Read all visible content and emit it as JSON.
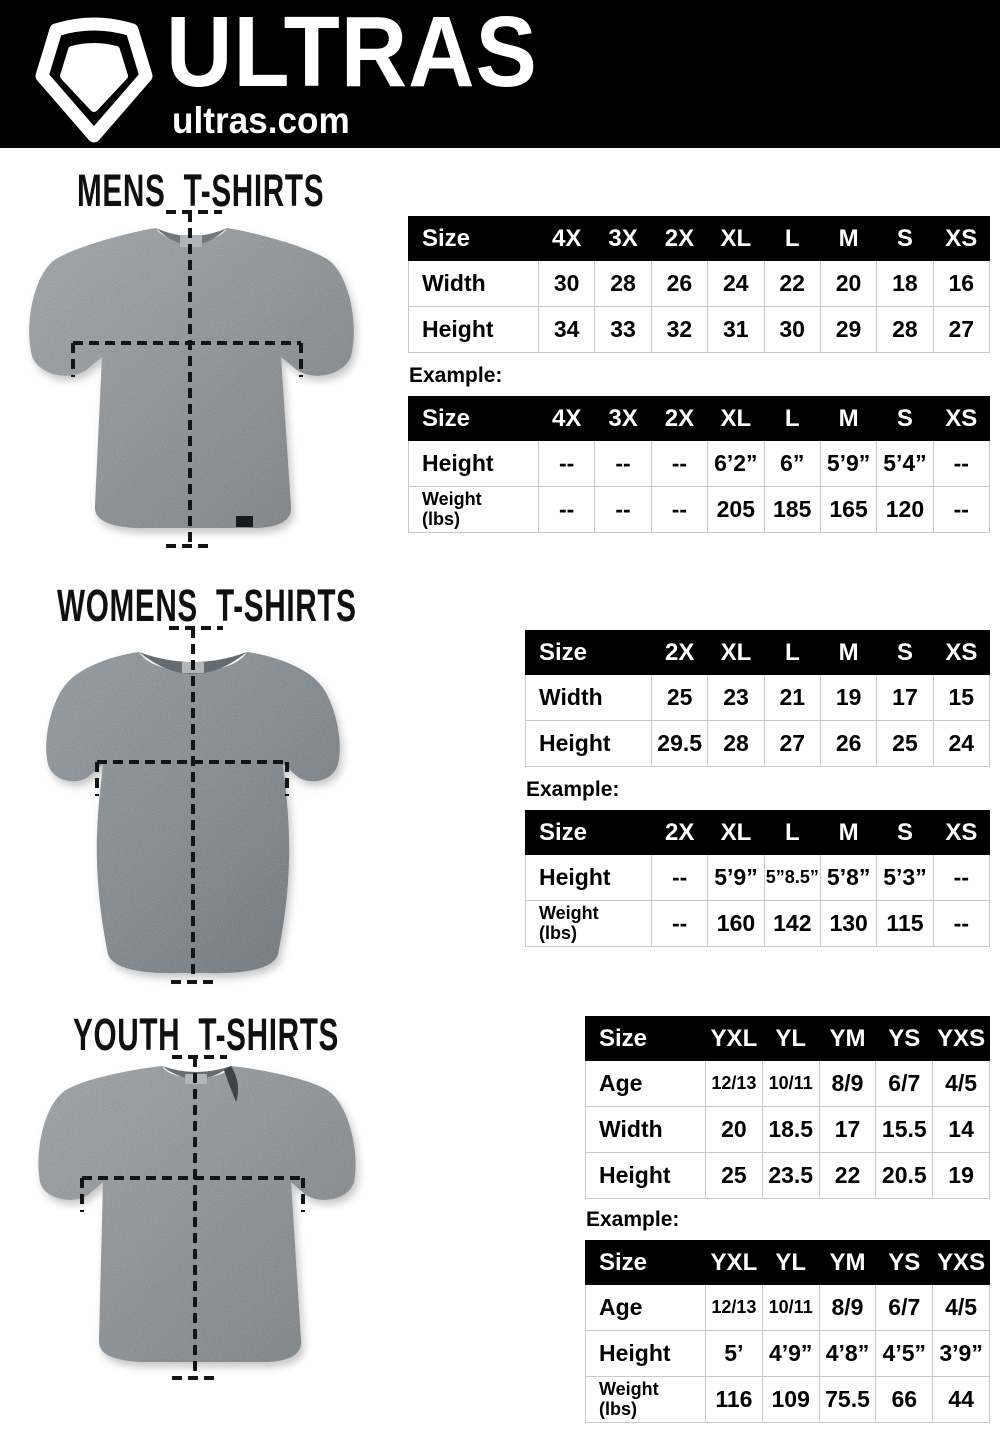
{
  "header": {
    "brand": "ULTRAS",
    "site": "ultras.com",
    "logo_icon": "pentagon-crest-icon",
    "colors": {
      "bar_bg": "#000000",
      "text": "#ffffff"
    }
  },
  "sections": [
    {
      "id": "mens",
      "title": "MENS T-SHIRTS",
      "example_label": "Example:",
      "shirt": {
        "style": "mens-crew-tee",
        "color": "#8a9197"
      },
      "size_table": {
        "header": [
          "Size",
          "4X",
          "3X",
          "2X",
          "XL",
          "L",
          "M",
          "S",
          "XS"
        ],
        "rows": [
          [
            "Width",
            "30",
            "28",
            "26",
            "24",
            "22",
            "20",
            "18",
            "16"
          ],
          [
            "Height",
            "34",
            "33",
            "32",
            "31",
            "30",
            "29",
            "28",
            "27"
          ]
        ]
      },
      "example_table": {
        "header": [
          "Size",
          "4X",
          "3X",
          "2X",
          "XL",
          "L",
          "M",
          "S",
          "XS"
        ],
        "rows": [
          [
            "Height",
            "--",
            "--",
            "--",
            "6’2”",
            "6”",
            "5’9”",
            "5’4”",
            "--"
          ],
          [
            "Weight\n(lbs)",
            "--",
            "--",
            "--",
            "205",
            "185",
            "165",
            "120",
            "--"
          ]
        ]
      }
    },
    {
      "id": "womens",
      "title": "WOMENS T-SHIRTS",
      "example_label": "Example:",
      "shirt": {
        "style": "womens-fitted-tee",
        "color": "#7e878d"
      },
      "size_table": {
        "header": [
          "Size",
          "2X",
          "XL",
          "L",
          "M",
          "S",
          "XS"
        ],
        "rows": [
          [
            "Width",
            "25",
            "23",
            "21",
            "19",
            "17",
            "15"
          ],
          [
            "Height",
            "29.5",
            "28",
            "27",
            "26",
            "25",
            "24"
          ]
        ]
      },
      "example_table": {
        "header": [
          "Size",
          "2X",
          "XL",
          "L",
          "M",
          "S",
          "XS"
        ],
        "rows": [
          [
            "Height",
            "--",
            "5’9”",
            "5”8.5”",
            "5’8”",
            "5’3”",
            "--"
          ],
          [
            "Weight\n(lbs)",
            "--",
            "160",
            "142",
            "130",
            "115",
            "--"
          ]
        ]
      }
    },
    {
      "id": "youth",
      "title": "YOUTH T-SHIRTS",
      "example_label": "Example:",
      "shirt": {
        "style": "youth-crew-tee",
        "color": "#878f94"
      },
      "size_table": {
        "header": [
          "Size",
          "YXL",
          "YL",
          "YM",
          "YS",
          "YXS"
        ],
        "rows": [
          [
            "Age",
            "12/13",
            "10/11",
            "8/9",
            "6/7",
            "4/5"
          ],
          [
            "Width",
            "20",
            "18.5",
            "17",
            "15.5",
            "14"
          ],
          [
            "Height",
            "25",
            "23.5",
            "22",
            "20.5",
            "19"
          ]
        ]
      },
      "example_table": {
        "header": [
          "Size",
          "YXL",
          "YL",
          "YM",
          "YS",
          "YXS"
        ],
        "rows": [
          [
            "Age",
            "12/13",
            "10/11",
            "8/9",
            "6/7",
            "4/5"
          ],
          [
            "Height",
            "5’",
            "4’9”",
            "4’8”",
            "4’5”",
            "3’9”"
          ],
          [
            "Weight\n(lbs)",
            "116",
            "109",
            "75.5",
            "66",
            "44"
          ]
        ]
      }
    }
  ]
}
